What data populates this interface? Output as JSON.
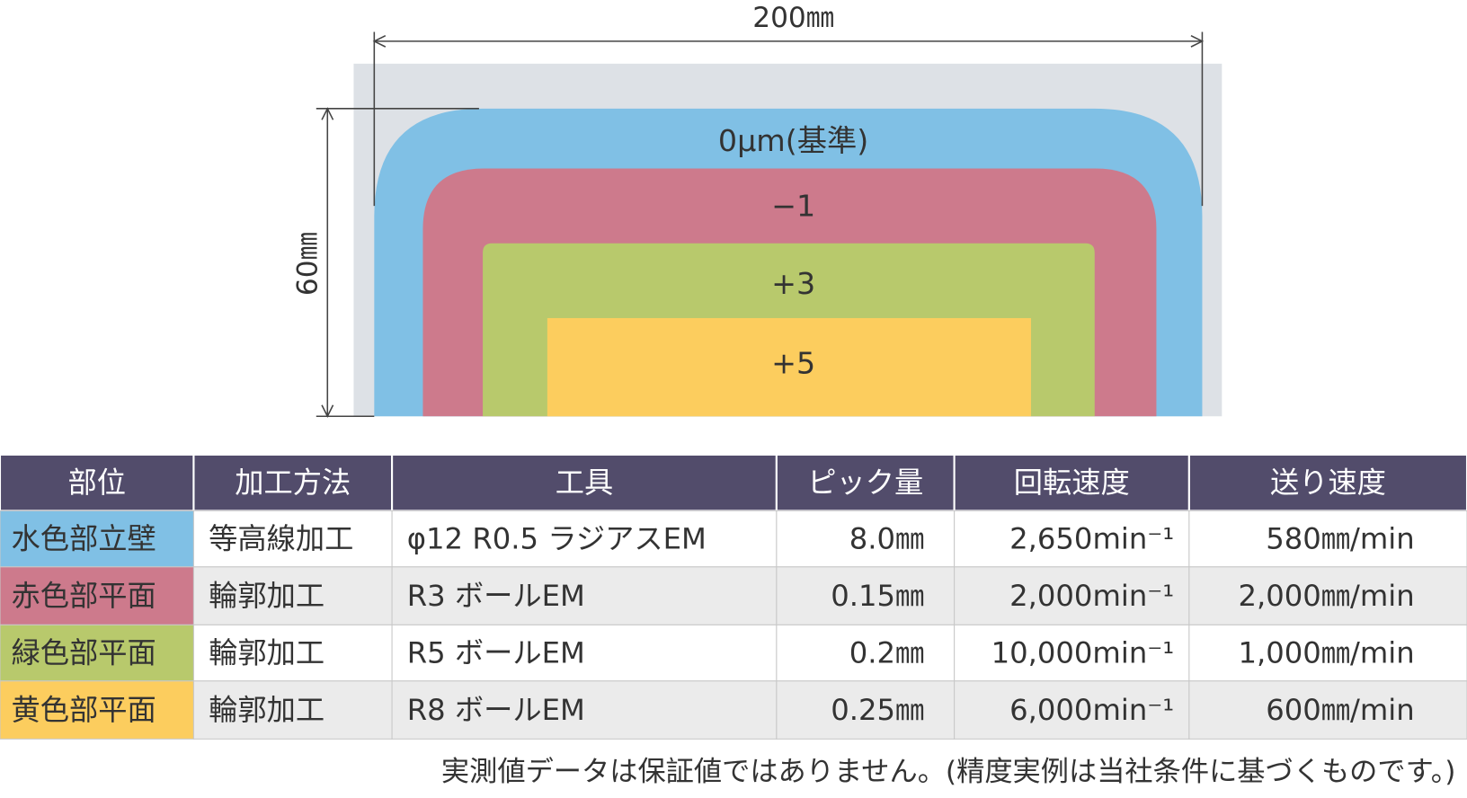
{
  "diagram": {
    "width_label": "200㎜",
    "height_label": "60㎜",
    "layers": [
      "0μm(基準)",
      "−1",
      "+3",
      "+5"
    ]
  },
  "table": {
    "header": [
      "部位",
      "加工方法",
      "工具",
      "ピック量",
      "回転速度",
      "送り速度"
    ],
    "rows": [
      [
        "水色部立壁",
        "等高線加工",
        "φ12 R0.5 ラジアスEM",
        "8.0㎜",
        "2,650min⁻¹",
        "580㎜/min"
      ],
      [
        "赤色部平面",
        "輪郭加工",
        "R3 ボールEM",
        "0.15㎜",
        "2,000min⁻¹",
        "2,000㎜/min"
      ],
      [
        "緑色部平面",
        "輪郭加工",
        "R5 ボールEM",
        "0.2㎜",
        "10,000min⁻¹",
        "1,000㎜/min"
      ],
      [
        "黄色部平面",
        "輪郭加工",
        "R8 ボールEM",
        "0.25㎜",
        "6,000min⁻¹",
        "600㎜/min"
      ]
    ]
  },
  "note": "実測値データは保証値ではありません。(精度実例は当社条件に基づくものです。)"
}
